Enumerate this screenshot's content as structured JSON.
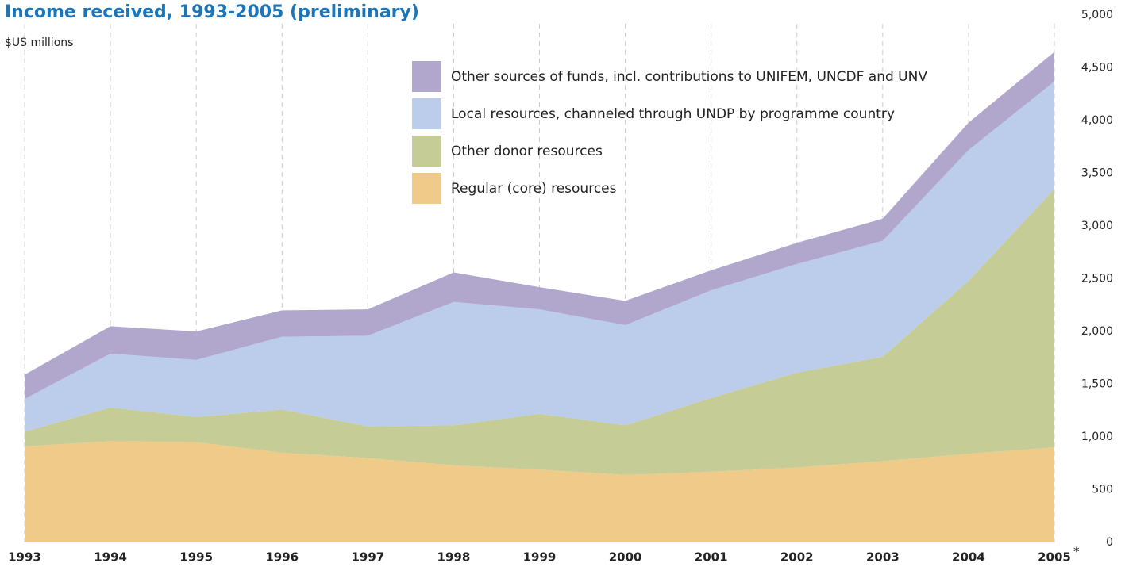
{
  "chart_data": {
    "type": "stacked_area",
    "title": "Income received, 1993-2005 (preliminary)",
    "y_label": "$US millions",
    "annotation": "*",
    "categories": [
      "1993",
      "1994",
      "1995",
      "1996",
      "1997",
      "1998",
      "1999",
      "2000",
      "2001",
      "2002",
      "2003",
      "2004",
      "2005"
    ],
    "series": [
      {
        "name": "Regular (core) resources",
        "color": "#f0ca88",
        "values": [
          910,
          960,
          950,
          850,
          800,
          730,
          690,
          640,
          670,
          710,
          770,
          840,
          900
        ]
      },
      {
        "name": "Other donor resources",
        "color": "#c5cc96",
        "values": [
          140,
          320,
          240,
          410,
          300,
          380,
          530,
          470,
          700,
          900,
          990,
          1640,
          2450
        ]
      },
      {
        "name": "Local resources, channeled through UNDP by programme country",
        "color": "#bbcdeb",
        "values": [
          310,
          510,
          540,
          690,
          860,
          1170,
          990,
          950,
          1020,
          1030,
          1100,
          1240,
          1020
        ]
      },
      {
        "name": "Other sources of funds, incl. contributions to UNIFEM, UNCDF and UNV",
        "color": "#b1a7cc",
        "values": [
          230,
          260,
          270,
          250,
          250,
          280,
          210,
          230,
          190,
          200,
          210,
          260,
          280
        ]
      }
    ],
    "ylim": [
      0,
      5000
    ],
    "yticks": [
      0,
      500,
      {
        "value": 1000,
        "label": "1,000"
      },
      {
        "value": 1500,
        "label": "1,500"
      },
      {
        "value": 2000,
        "label": "2,000"
      },
      {
        "value": 2500,
        "label": "2,500"
      },
      {
        "value": 3000,
        "label": "3,000"
      },
      {
        "value": 3500,
        "label": "3,500"
      },
      {
        "value": 4000,
        "label": "4,000"
      },
      {
        "value": 4500,
        "label": "4,500"
      },
      {
        "value": 5000,
        "label": "5,000"
      }
    ],
    "grid": true
  }
}
